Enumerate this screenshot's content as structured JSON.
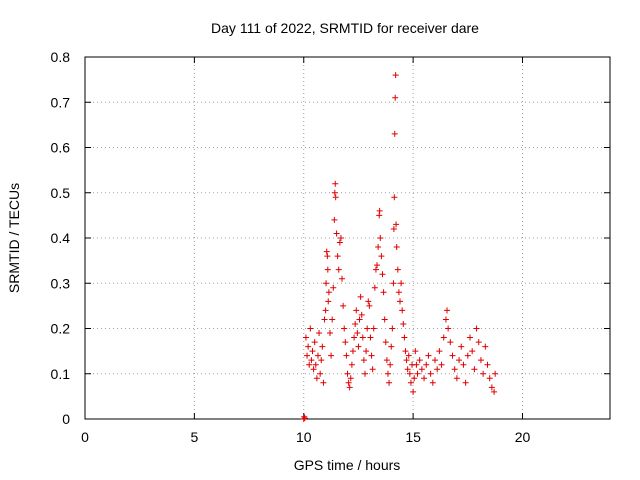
{
  "chart_data": {
    "type": "scatter",
    "title": "Day 111 of 2022, SRMTID for receiver dare",
    "xlabel": "GPS time / hours",
    "ylabel": "SRMTID / TECUs",
    "xlim": [
      0,
      24
    ],
    "ylim": [
      0,
      0.8
    ],
    "xticks": [
      0,
      5,
      10,
      15,
      20
    ],
    "yticks": [
      0,
      0.1,
      0.2,
      0.3,
      0.4,
      0.5,
      0.6,
      0.7,
      0.8
    ],
    "ytick_labels": [
      "0",
      "0.1",
      "0.2",
      "0.3",
      "0.4",
      "0.5",
      "0.6",
      "0.7",
      "0.8"
    ],
    "grid": true,
    "marker": "+",
    "color": "#e00000",
    "series": [
      {
        "name": "SRMTID",
        "points": [
          [
            10.0,
            0.0
          ],
          [
            10.02,
            0.005
          ],
          [
            10.05,
            0.002
          ],
          [
            10.1,
            0.18
          ],
          [
            10.15,
            0.14
          ],
          [
            10.2,
            0.16
          ],
          [
            10.25,
            0.12
          ],
          [
            10.3,
            0.2
          ],
          [
            10.35,
            0.13
          ],
          [
            10.4,
            0.15
          ],
          [
            10.45,
            0.11
          ],
          [
            10.5,
            0.17
          ],
          [
            10.55,
            0.12
          ],
          [
            10.6,
            0.09
          ],
          [
            10.65,
            0.14
          ],
          [
            10.7,
            0.19
          ],
          [
            10.75,
            0.1
          ],
          [
            10.8,
            0.13
          ],
          [
            10.85,
            0.16
          ],
          [
            10.9,
            0.08
          ],
          [
            10.95,
            0.22
          ],
          [
            11.0,
            0.24
          ],
          [
            11.02,
            0.3
          ],
          [
            11.05,
            0.37
          ],
          [
            11.08,
            0.36
          ],
          [
            11.1,
            0.33
          ],
          [
            11.12,
            0.26
          ],
          [
            11.15,
            0.28
          ],
          [
            11.2,
            0.19
          ],
          [
            11.25,
            0.14
          ],
          [
            11.3,
            0.22
          ],
          [
            11.35,
            0.29
          ],
          [
            11.4,
            0.44
          ],
          [
            11.42,
            0.5
          ],
          [
            11.44,
            0.52
          ],
          [
            11.46,
            0.49
          ],
          [
            11.5,
            0.41
          ],
          [
            11.55,
            0.36
          ],
          [
            11.6,
            0.33
          ],
          [
            11.65,
            0.39
          ],
          [
            11.7,
            0.4
          ],
          [
            11.75,
            0.31
          ],
          [
            11.8,
            0.25
          ],
          [
            11.85,
            0.2
          ],
          [
            11.9,
            0.17
          ],
          [
            11.95,
            0.14
          ],
          [
            12.0,
            0.1
          ],
          [
            12.05,
            0.08
          ],
          [
            12.1,
            0.07
          ],
          [
            12.15,
            0.09
          ],
          [
            12.2,
            0.12
          ],
          [
            12.25,
            0.15
          ],
          [
            12.3,
            0.18
          ],
          [
            12.35,
            0.21
          ],
          [
            12.4,
            0.24
          ],
          [
            12.45,
            0.19
          ],
          [
            12.5,
            0.16
          ],
          [
            12.55,
            0.22
          ],
          [
            12.6,
            0.27
          ],
          [
            12.65,
            0.23
          ],
          [
            12.7,
            0.18
          ],
          [
            12.75,
            0.13
          ],
          [
            12.8,
            0.1
          ],
          [
            12.85,
            0.15
          ],
          [
            12.9,
            0.2
          ],
          [
            12.95,
            0.26
          ],
          [
            13.0,
            0.25
          ],
          [
            13.05,
            0.18
          ],
          [
            13.1,
            0.14
          ],
          [
            13.15,
            0.11
          ],
          [
            13.2,
            0.2
          ],
          [
            13.25,
            0.29
          ],
          [
            13.3,
            0.33
          ],
          [
            13.35,
            0.34
          ],
          [
            13.4,
            0.38
          ],
          [
            13.45,
            0.45
          ],
          [
            13.47,
            0.46
          ],
          [
            13.5,
            0.4
          ],
          [
            13.55,
            0.36
          ],
          [
            13.6,
            0.32
          ],
          [
            13.65,
            0.28
          ],
          [
            13.7,
            0.22
          ],
          [
            13.75,
            0.17
          ],
          [
            13.8,
            0.13
          ],
          [
            13.85,
            0.1
          ],
          [
            13.9,
            0.08
          ],
          [
            13.95,
            0.12
          ],
          [
            14.0,
            0.16
          ],
          [
            14.05,
            0.2
          ],
          [
            14.1,
            0.3
          ],
          [
            14.12,
            0.42
          ],
          [
            14.14,
            0.49
          ],
          [
            14.16,
            0.63
          ],
          [
            14.18,
            0.71
          ],
          [
            14.2,
            0.76
          ],
          [
            14.22,
            0.43
          ],
          [
            14.25,
            0.38
          ],
          [
            14.3,
            0.33
          ],
          [
            14.35,
            0.28
          ],
          [
            14.4,
            0.26
          ],
          [
            14.45,
            0.3
          ],
          [
            14.5,
            0.24
          ],
          [
            14.55,
            0.21
          ],
          [
            14.6,
            0.18
          ],
          [
            14.65,
            0.15
          ],
          [
            14.7,
            0.13
          ],
          [
            14.75,
            0.11
          ],
          [
            14.8,
            0.14
          ],
          [
            14.85,
            0.1
          ],
          [
            14.9,
            0.08
          ],
          [
            14.95,
            0.12
          ],
          [
            15.0,
            0.06
          ],
          [
            15.05,
            0.09
          ],
          [
            15.1,
            0.15
          ],
          [
            15.15,
            0.12
          ],
          [
            15.2,
            0.1
          ],
          [
            15.3,
            0.13
          ],
          [
            15.4,
            0.11
          ],
          [
            15.5,
            0.09
          ],
          [
            15.6,
            0.12
          ],
          [
            15.7,
            0.14
          ],
          [
            15.8,
            0.1
          ],
          [
            15.9,
            0.08
          ],
          [
            16.0,
            0.13
          ],
          [
            16.1,
            0.11
          ],
          [
            16.2,
            0.15
          ],
          [
            16.3,
            0.12
          ],
          [
            16.4,
            0.18
          ],
          [
            16.5,
            0.22
          ],
          [
            16.55,
            0.24
          ],
          [
            16.6,
            0.2
          ],
          [
            16.7,
            0.17
          ],
          [
            16.8,
            0.14
          ],
          [
            16.9,
            0.11
          ],
          [
            17.0,
            0.09
          ],
          [
            17.1,
            0.13
          ],
          [
            17.2,
            0.16
          ],
          [
            17.3,
            0.12
          ],
          [
            17.4,
            0.08
          ],
          [
            17.5,
            0.14
          ],
          [
            17.6,
            0.18
          ],
          [
            17.7,
            0.15
          ],
          [
            17.8,
            0.11
          ],
          [
            17.9,
            0.2
          ],
          [
            18.0,
            0.17
          ],
          [
            18.1,
            0.13
          ],
          [
            18.2,
            0.1
          ],
          [
            18.3,
            0.16
          ],
          [
            18.4,
            0.12
          ],
          [
            18.5,
            0.09
          ],
          [
            18.6,
            0.07
          ],
          [
            18.7,
            0.06
          ],
          [
            18.75,
            0.1
          ]
        ]
      }
    ]
  }
}
